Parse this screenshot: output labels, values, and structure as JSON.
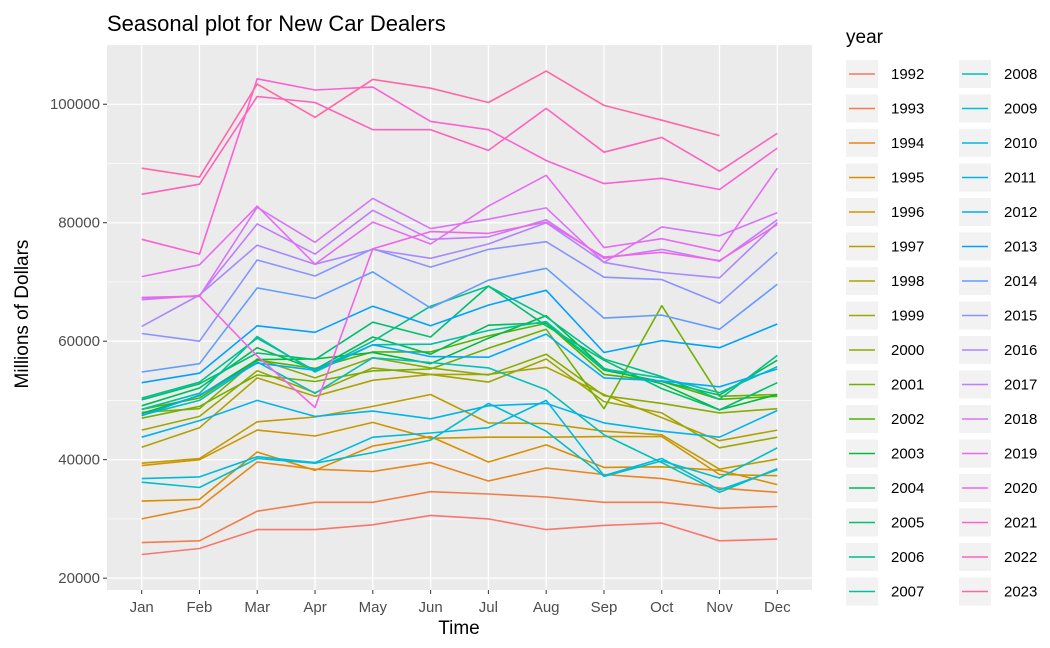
{
  "chart_data": {
    "type": "line",
    "title": "Seasonal plot for New Car Dealers",
    "xlabel": "Time",
    "ylabel": "Millions of Dollars",
    "categories": [
      "Jan",
      "Feb",
      "Mar",
      "Apr",
      "May",
      "Jun",
      "Jul",
      "Aug",
      "Sep",
      "Oct",
      "Nov",
      "Dec"
    ],
    "ylim": [
      18000,
      110000
    ],
    "yticks": [
      20000,
      40000,
      60000,
      80000,
      100000
    ],
    "ytick_labels": [
      "20000",
      "40000",
      "60000",
      "80000",
      "100000"
    ],
    "grid": true,
    "legend_title": "year",
    "legend_position": "right",
    "background_color": "#EBEBEB",
    "grid_color": "#FFFFFF",
    "series": [
      {
        "name": "1992",
        "color": "#F8766D",
        "values": [
          24000,
          25000,
          28200,
          28200,
          29000,
          30600,
          30000,
          28200,
          28900,
          29300,
          26300,
          26600
        ]
      },
      {
        "name": "1993",
        "color": "#F17D4C",
        "values": [
          26000,
          26300,
          31300,
          32800,
          32800,
          34600,
          34200,
          33700,
          32800,
          32800,
          31800,
          32100
        ]
      },
      {
        "name": "1994",
        "color": "#E7851E",
        "values": [
          30000,
          32000,
          39600,
          38400,
          38000,
          39500,
          36400,
          38600,
          37500,
          36800,
          35200,
          34500
        ]
      },
      {
        "name": "1995",
        "color": "#DB8E00",
        "values": [
          33000,
          33300,
          41300,
          38200,
          42300,
          43900,
          39600,
          42500,
          38700,
          38800,
          38200,
          35800
        ]
      },
      {
        "name": "1996",
        "color": "#CD9600",
        "values": [
          39000,
          40000,
          45000,
          44000,
          46300,
          43600,
          43800,
          43800,
          43900,
          43900,
          37500,
          37300
        ]
      },
      {
        "name": "1997",
        "color": "#BE9C00",
        "values": [
          39400,
          40200,
          46400,
          47200,
          49000,
          51000,
          46200,
          46100,
          44800,
          44200,
          38400,
          40100
        ]
      },
      {
        "name": "1998",
        "color": "#AEA200",
        "values": [
          42100,
          45400,
          53800,
          50700,
          53400,
          54400,
          54400,
          55600,
          51000,
          47100,
          43200,
          45000
        ]
      },
      {
        "name": "1999",
        "color": "#9CA700",
        "values": [
          45000,
          47300,
          55000,
          51300,
          55500,
          54400,
          53100,
          57000,
          49800,
          47900,
          42000,
          43800
        ]
      },
      {
        "name": "2000",
        "color": "#8AAB00",
        "values": [
          48000,
          48600,
          57000,
          53800,
          57200,
          55500,
          54300,
          57800,
          50800,
          49500,
          47900,
          48600
        ]
      },
      {
        "name": "2001",
        "color": "#72B000",
        "values": [
          47000,
          49000,
          54300,
          53200,
          55000,
          55300,
          58800,
          62000,
          48600,
          66000,
          50700,
          51000
        ]
      },
      {
        "name": "2002",
        "color": "#53B400",
        "values": [
          48500,
          50400,
          56800,
          55400,
          58200,
          58200,
          60900,
          63000,
          54400,
          53200,
          50200,
          50700
        ]
      },
      {
        "name": "2003",
        "color": "#00BA38",
        "values": [
          47800,
          50800,
          56900,
          57000,
          58100,
          56200,
          60500,
          64300,
          55400,
          52800,
          48400,
          51000
        ]
      },
      {
        "name": "2004",
        "color": "#00BC56",
        "values": [
          49100,
          52100,
          58900,
          55200,
          60700,
          57800,
          62700,
          63100,
          55100,
          53200,
          50900,
          56800
        ]
      },
      {
        "name": "2005",
        "color": "#00BE72",
        "values": [
          50100,
          52800,
          58000,
          56900,
          63200,
          60700,
          69300,
          62600,
          56800,
          52000,
          48400,
          53000
        ]
      },
      {
        "name": "2006",
        "color": "#00C08B",
        "values": [
          50400,
          53100,
          60500,
          55000,
          60000,
          65900,
          69300,
          64100,
          57000,
          54000,
          50200,
          57600
        ]
      },
      {
        "name": "2007",
        "color": "#00C1A2",
        "values": [
          48500,
          51200,
          60800,
          54800,
          59400,
          59500,
          61800,
          63300,
          55300,
          53800,
          51300,
          55700
        ]
      },
      {
        "name": "2008",
        "color": "#00C0B8",
        "values": [
          47500,
          50000,
          56500,
          51200,
          57200,
          56400,
          55500,
          51800,
          44200,
          39500,
          34500,
          38500
        ]
      },
      {
        "name": "2009",
        "color": "#00BECC",
        "values": [
          36200,
          35300,
          40200,
          39400,
          41200,
          43300,
          49500,
          44800,
          37200,
          39800,
          36900,
          42000
        ]
      },
      {
        "name": "2010",
        "color": "#00BADE",
        "values": [
          36800,
          37100,
          40500,
          39500,
          43800,
          44500,
          45400,
          50000,
          37300,
          40200,
          34900,
          38300
        ]
      },
      {
        "name": "2011",
        "color": "#00B4EF",
        "values": [
          43800,
          46600,
          50000,
          47300,
          48200,
          46900,
          49100,
          49500,
          46200,
          44800,
          43800,
          48300
        ]
      },
      {
        "name": "2012",
        "color": "#00ABFD",
        "values": [
          47400,
          50900,
          56300,
          55100,
          59400,
          57400,
          57300,
          61200,
          53800,
          53300,
          52300,
          55300
        ]
      },
      {
        "name": "2013",
        "color": "#00A1FF",
        "values": [
          53000,
          54600,
          62600,
          61500,
          65900,
          62600,
          66100,
          68600,
          58100,
          60100,
          58900,
          62900
        ]
      },
      {
        "name": "2014",
        "color": "#619CFF",
        "values": [
          54800,
          56200,
          69000,
          67200,
          71700,
          65600,
          70300,
          72300,
          63900,
          64400,
          62000,
          69600
        ]
      },
      {
        "name": "2015",
        "color": "#8B93FF",
        "values": [
          61300,
          60000,
          73700,
          71000,
          75600,
          72500,
          75500,
          76800,
          70800,
          70400,
          66400,
          75000
        ]
      },
      {
        "name": "2016",
        "color": "#AA88FF",
        "values": [
          62500,
          67800,
          76200,
          73000,
          75500,
          74000,
          76400,
          80000,
          73300,
          71600,
          70700,
          80000
        ]
      },
      {
        "name": "2017",
        "color": "#C37CFF",
        "values": [
          67000,
          67700,
          79800,
          74700,
          82100,
          77200,
          77600,
          80500,
          74000,
          75500,
          73500,
          80500
        ]
      },
      {
        "name": "2018",
        "color": "#D774F8",
        "values": [
          67400,
          67600,
          82600,
          76700,
          84100,
          79000,
          80600,
          82500,
          73300,
          79300,
          77800,
          81700
        ]
      },
      {
        "name": "2019",
        "color": "#E76BF3",
        "values": [
          70900,
          72900,
          82800,
          73000,
          80100,
          76400,
          82800,
          88000,
          75800,
          77300,
          75200,
          89200
        ]
      },
      {
        "name": "2020",
        "color": "#F365E6",
        "values": [
          67300,
          67600,
          57500,
          48800,
          75600,
          78500,
          78200,
          80100,
          74200,
          75000,
          73600,
          79700
        ]
      },
      {
        "name": "2021",
        "color": "#FD61D1",
        "values": [
          77200,
          74700,
          104300,
          102400,
          102900,
          97100,
          95700,
          90500,
          86600,
          87500,
          85600,
          92600
        ]
      },
      {
        "name": "2022",
        "color": "#FF62BC",
        "values": [
          84800,
          86500,
          101300,
          100300,
          95700,
          95700,
          92200,
          99300,
          91900,
          94400,
          88700,
          95100
        ]
      },
      {
        "name": "2023",
        "color": "#FF67A4",
        "values": [
          89200,
          87700,
          103400,
          97800,
          104200,
          102700,
          100300,
          105600,
          99800,
          97300,
          94700,
          null
        ]
      }
    ]
  }
}
